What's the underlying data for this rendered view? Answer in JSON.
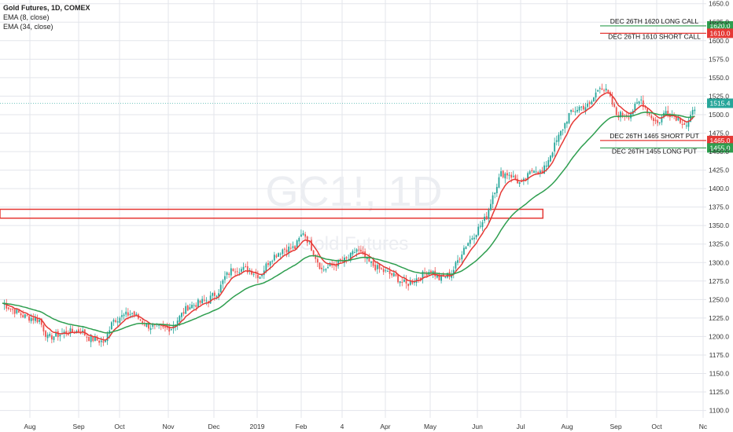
{
  "legend": {
    "symbol_line": "Gold Futures, 1D, COMEX",
    "ema_fast": "EMA (8, close)",
    "ema_slow": "EMA (34, close)"
  },
  "watermark": {
    "symbol": "GC1!, 1D",
    "name": "Gold Futures"
  },
  "colors": {
    "up": "#26a69a",
    "down": "#ef5350",
    "ema_fast": "#e53935",
    "ema_slow": "#2e9e4f",
    "box": "#e53935",
    "grid": "#e3e5eb",
    "axis_text": "#333333",
    "last_price_bg": "#26a69a"
  },
  "chart_data": {
    "type": "candlestick",
    "title": "",
    "x_ticks": [
      "Aug",
      "Sep",
      "Oct",
      "Nov",
      "Dec",
      "2019",
      "Feb",
      "4",
      "Apr",
      "May",
      "Jun",
      "Jul",
      "Aug",
      "Sep",
      "Oct",
      "Nc"
    ],
    "y_ticks": [
      1100.0,
      1125.0,
      1150.0,
      1175.0,
      1200.0,
      1225.0,
      1250.0,
      1275.0,
      1300.0,
      1325.0,
      1350.0,
      1375.0,
      1400.0,
      1425.0,
      1450.0,
      1475.0,
      1500.0,
      1525.0,
      1550.0,
      1575.0,
      1600.0,
      1625.0,
      1650.0
    ],
    "ylim": [
      1090,
      1655
    ],
    "price_path": [
      [
        0,
        1245
      ],
      [
        10,
        1228
      ],
      [
        18,
        1222
      ],
      [
        22,
        1198
      ],
      [
        30,
        1205
      ],
      [
        38,
        1208
      ],
      [
        42,
        1198
      ],
      [
        50,
        1192
      ],
      [
        53,
        1222
      ],
      [
        63,
        1232
      ],
      [
        70,
        1215
      ],
      [
        78,
        1210
      ],
      [
        82,
        1212
      ],
      [
        90,
        1240
      ],
      [
        100,
        1250
      ],
      [
        105,
        1262
      ],
      [
        108,
        1280
      ],
      [
        112,
        1292
      ],
      [
        120,
        1290
      ],
      [
        125,
        1282
      ],
      [
        130,
        1305
      ],
      [
        136,
        1318
      ],
      [
        142,
        1320
      ],
      [
        146,
        1342
      ],
      [
        150,
        1320
      ],
      [
        155,
        1290
      ],
      [
        162,
        1298
      ],
      [
        168,
        1305
      ],
      [
        172,
        1318
      ],
      [
        178,
        1300
      ],
      [
        182,
        1292
      ],
      [
        190,
        1282
      ],
      [
        196,
        1270
      ],
      [
        202,
        1280
      ],
      [
        208,
        1290
      ],
      [
        212,
        1278
      ],
      [
        218,
        1285
      ],
      [
        224,
        1320
      ],
      [
        230,
        1342
      ],
      [
        235,
        1362
      ],
      [
        238,
        1392
      ],
      [
        242,
        1420
      ],
      [
        246,
        1420
      ],
      [
        252,
        1405
      ],
      [
        258,
        1428
      ],
      [
        262,
        1420
      ],
      [
        265,
        1440
      ],
      [
        270,
        1470
      ],
      [
        275,
        1500
      ],
      [
        280,
        1510
      ],
      [
        285,
        1512
      ],
      [
        290,
        1540
      ],
      [
        294,
        1528
      ],
      [
        298,
        1500
      ],
      [
        304,
        1500
      ],
      [
        310,
        1520
      ],
      [
        314,
        1500
      ],
      [
        318,
        1488
      ],
      [
        322,
        1505
      ],
      [
        328,
        1495
      ],
      [
        332,
        1486
      ],
      [
        334,
        1495
      ],
      [
        336,
        1510
      ]
    ],
    "horizontal_levels": [
      {
        "label": "DEC 26TH 1620 LONG CALL",
        "price": 1620.0,
        "price_label": "1620.0",
        "color": "#2e9e4f"
      },
      {
        "label": "DEC 26TH 1610 SHORT CALL",
        "price": 1610.0,
        "price_label": "1610.0",
        "color": "#e53935"
      },
      {
        "label": "DEC 26TH 1465 SHORT PUT",
        "price": 1465.0,
        "price_label": "1465.0",
        "color": "#e53935"
      },
      {
        "label": "DEC 26TH 1455 LONG PUT",
        "price": 1455.0,
        "price_label": "1455.0",
        "color": "#2e9e4f"
      }
    ],
    "last_price": {
      "price": 1515.4,
      "label": "1515.4"
    },
    "zone": {
      "price_top": 1372,
      "price_bottom": 1360,
      "end_day": 244
    },
    "series": [
      {
        "name": "EMA (8, close)",
        "period": 8
      },
      {
        "name": "EMA (34, close)",
        "period": 34
      }
    ]
  }
}
